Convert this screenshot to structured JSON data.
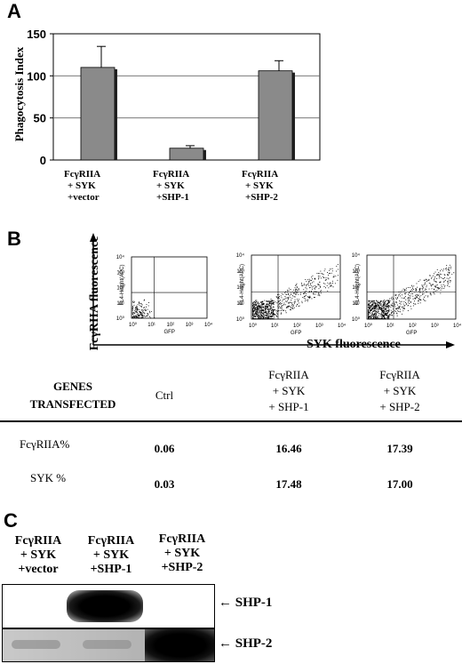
{
  "panel_a": {
    "letter": "A",
    "chart_data": {
      "type": "bar",
      "categories": [
        "FcγRIIA\n+ SYK\n+vector",
        "FcγRIIA\n+ SYK\n+SHP-1",
        "FcγRIIA\n+ SYK\n+SHP-2"
      ],
      "values": [
        110,
        14,
        106
      ],
      "errors": [
        25,
        3,
        12
      ],
      "ylabel": "Phagocytosis Index",
      "ylim": [
        0,
        150
      ],
      "yticks": [
        "0",
        "50",
        "100",
        "150"
      ],
      "grid": true,
      "bar_color": "#8a8a8a"
    },
    "conditions": [
      [
        "FcγRIIA",
        "+ SYK",
        "+vector"
      ],
      [
        "FcγRIIA",
        "+ SYK",
        "+SHP-1"
      ],
      [
        "FcγRIIA",
        "+ SYK",
        "+SHP-2"
      ]
    ]
  },
  "panel_b": {
    "letter": "B",
    "y_axis_label": "FcγRIIA fluorescence",
    "x_axis_label": "SYK fluorescence",
    "plot_ylabel": "FL4-Height(APC)",
    "plot_xlabel": "GFP",
    "table": {
      "header_label": [
        "GENES",
        "TRANSFECTED"
      ],
      "columns": [
        [
          "Ctrl"
        ],
        [
          "FcγRIIA",
          "+ SYK",
          "+ SHP-1"
        ],
        [
          "FcγRIIA",
          "+ SYK",
          "+ SHP-2"
        ]
      ],
      "rows": [
        {
          "label": "FcγRIIA%",
          "values": [
            "0.06",
            "16.46",
            "17.39"
          ]
        },
        {
          "label": "SYK %",
          "values": [
            "0.03",
            "17.48",
            "17.00"
          ]
        }
      ]
    }
  },
  "panel_c": {
    "letter": "C",
    "lanes": [
      [
        "FcγRIIA",
        "+ SYK",
        "+vector"
      ],
      [
        "FcγRIIA",
        "+ SYK",
        "+SHP-1"
      ],
      [
        "FcγRIIA",
        "+ SYK",
        "+SHP-2"
      ]
    ],
    "blot_labels": [
      "SHP-1",
      "SHP-2"
    ],
    "arrow_glyph": "←"
  }
}
